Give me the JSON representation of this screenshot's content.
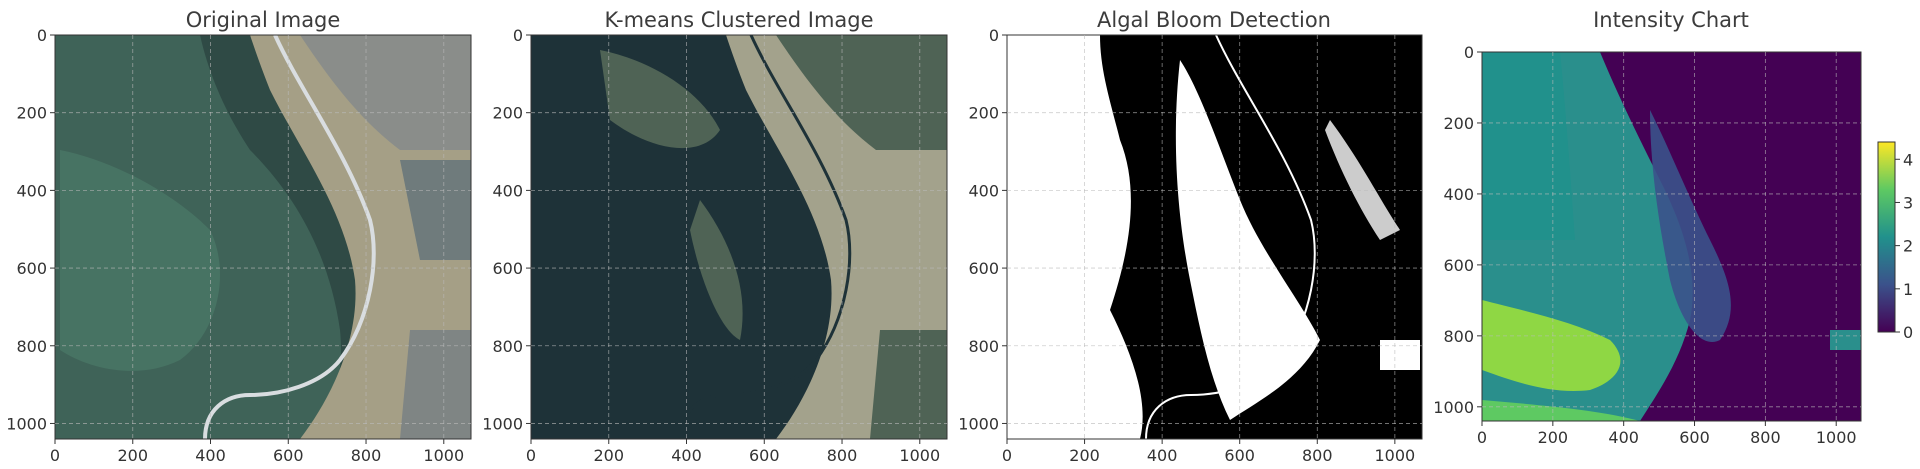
{
  "chart_data": [
    {
      "type": "image",
      "title": "Original Image",
      "xlim": [
        0,
        1070
      ],
      "ylim": [
        1040,
        0
      ],
      "xticks": [
        0,
        200,
        400,
        600,
        800,
        1000
      ],
      "yticks": [
        0,
        200,
        400,
        600,
        800,
        1000
      ],
      "grid": true,
      "palette": {
        "water": "#2f4a45",
        "shallow": "#4c7a68",
        "land": "#a59f86",
        "urban": "#8a8d8a",
        "road": "#d9dde0"
      }
    },
    {
      "type": "image",
      "title": "K-means Clustered Image",
      "xlim": [
        0,
        1070
      ],
      "ylim": [
        1040,
        0
      ],
      "xticks": [
        0,
        200,
        400,
        600,
        800,
        1000
      ],
      "yticks": [
        0,
        200,
        400,
        600,
        800,
        1000
      ],
      "grid": true,
      "palette": {
        "cluster_dark": "#1e3238",
        "cluster_mid": "#4f6355",
        "cluster_light": "#a3a28c"
      }
    },
    {
      "type": "image",
      "title": "Algal Bloom Detection",
      "xlim": [
        0,
        1070
      ],
      "ylim": [
        1040,
        0
      ],
      "xticks": [
        0,
        200,
        400,
        600,
        800,
        1000
      ],
      "yticks": [
        0,
        200,
        400,
        600,
        800,
        1000
      ],
      "grid": true,
      "palette": {
        "bloom": "#ffffff",
        "background": "#000000"
      }
    },
    {
      "type": "heatmap",
      "title": "Intensity Chart",
      "colormap": "viridis",
      "xlim": [
        0,
        1070
      ],
      "ylim": [
        1040,
        0
      ],
      "xticks": [
        0,
        200,
        400,
        600,
        800,
        1000
      ],
      "yticks": [
        0,
        200,
        400,
        600,
        800,
        1000
      ],
      "grid": true,
      "colorbar": {
        "range": [
          0,
          4.4
        ],
        "ticks": [
          0,
          1,
          2,
          3,
          4
        ]
      },
      "palette": {
        "low": "#440154",
        "mid": "#2a8f8c",
        "high": "#b5de2b",
        "max": "#fde725"
      }
    }
  ]
}
